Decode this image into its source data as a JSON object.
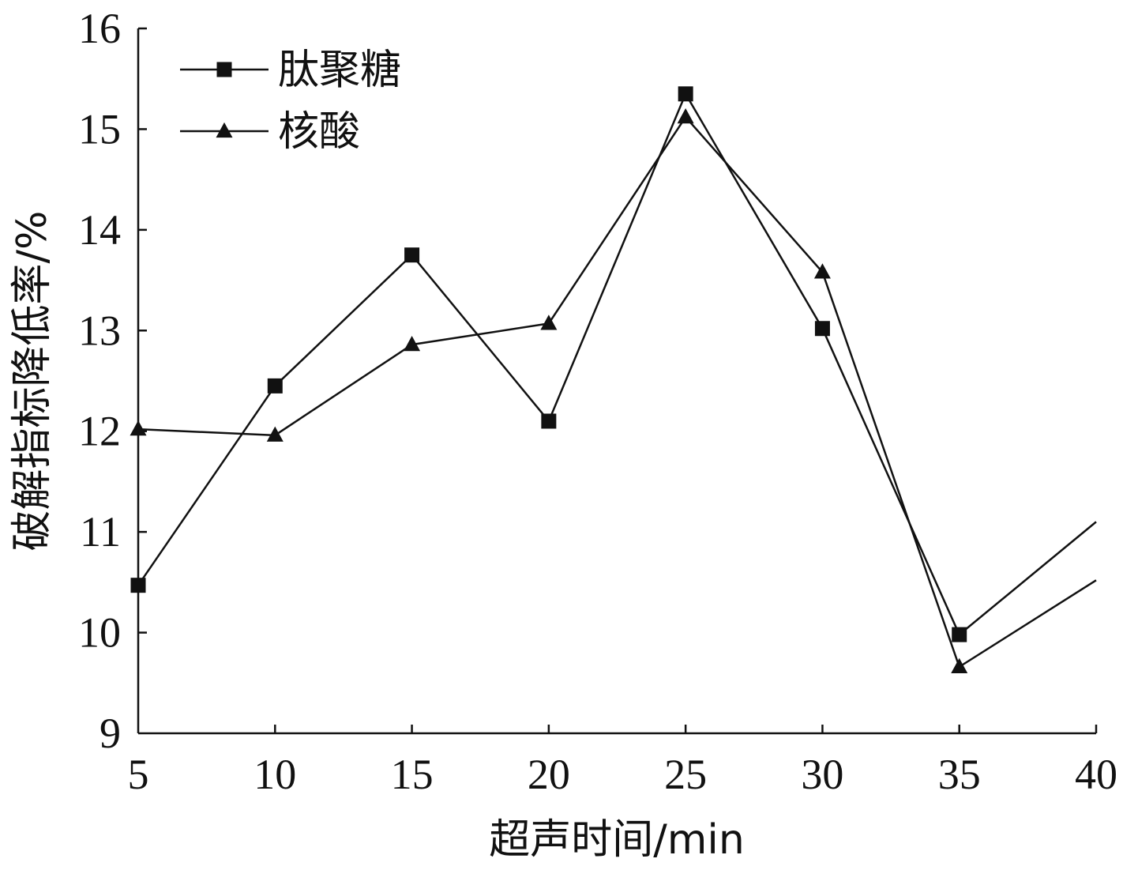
{
  "chart_data": {
    "type": "line",
    "title": "",
    "xlabel": "超声时间/min",
    "ylabel": "破解指标降低率/%",
    "x": [
      5,
      10,
      15,
      20,
      25,
      30,
      35,
      40
    ],
    "xlim": [
      5,
      40
    ],
    "ylim": [
      9,
      16
    ],
    "xticks": [
      "5",
      "10",
      "15",
      "20",
      "25",
      "30",
      "35",
      "40"
    ],
    "yticks": [
      "9",
      "10",
      "11",
      "12",
      "13",
      "14",
      "15",
      "16"
    ],
    "grid": false,
    "legend_position": "top-left",
    "series": [
      {
        "name": "肽聚糖",
        "marker": "square",
        "color": "#111111",
        "values": [
          10.47,
          12.45,
          13.75,
          12.1,
          15.35,
          13.02,
          9.98,
          11.1
        ]
      },
      {
        "name": "核酸",
        "marker": "triangle",
        "color": "#111111",
        "values": [
          12.02,
          11.96,
          12.86,
          13.07,
          15.12,
          13.58,
          9.66,
          10.52
        ]
      }
    ]
  }
}
